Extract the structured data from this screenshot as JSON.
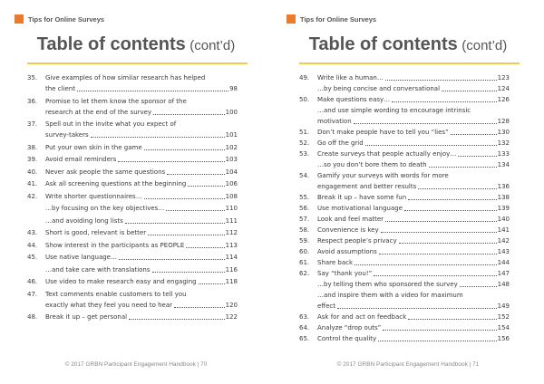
{
  "header": "Tips for Online Surveys",
  "title": {
    "main": "Table of contents",
    "suffix": "(cont’d)"
  },
  "pages": [
    {
      "footer": "© 2017 GRBN Participant Engagement Handbook | 70",
      "entries": [
        {
          "num": "35.",
          "line1": "Give examples of how similar research has helped",
          "text": "the client",
          "page": "98"
        },
        {
          "num": "36.",
          "line1": "Promise to let them know the sponsor of the",
          "text": "research at the end of the survey",
          "page": "100"
        },
        {
          "num": "37.",
          "line1": "Spell out in the invite what you expect of",
          "text": "survey-takers",
          "page": "101"
        },
        {
          "num": "38.",
          "text": "Put your own skin in the game",
          "page": "102"
        },
        {
          "num": "39.",
          "text": "Avoid email reminders",
          "page": "103"
        },
        {
          "num": "40.",
          "text": "Never ask people the same questions",
          "page": "104"
        },
        {
          "num": "41.",
          "text": "Ask all screening questions at the beginning",
          "page": "106"
        },
        {
          "num": "42.",
          "text": "Write shorter questionnaires…",
          "page": "108"
        },
        {
          "num": "",
          "text": "…by focusing on the key objectives…",
          "page": "110"
        },
        {
          "num": "",
          "text": "…and avoiding long lists",
          "page": "111"
        },
        {
          "num": "43.",
          "text": "Short is good, relevant is better",
          "page": "112"
        },
        {
          "num": "44.",
          "text": "Show interest in the participants as PEOPLE",
          "page": "113"
        },
        {
          "num": "45.",
          "text": "Use native language…",
          "page": "114"
        },
        {
          "num": "",
          "text": "…and take care with translations",
          "page": "116"
        },
        {
          "num": "46.",
          "text": "Use video to make research easy and engaging",
          "page": "118"
        },
        {
          "num": "47.",
          "line1": "Text comments enable customers to tell you",
          "text": "exactly what they feel you need to hear",
          "page": "120"
        },
        {
          "num": "48.",
          "text": "Break it up – get personal",
          "page": "122"
        }
      ]
    },
    {
      "footer": "© 2017 GRBN Participant Engagement Handbook | 71",
      "entries": [
        {
          "num": "49.",
          "text": "Write like a human…",
          "page": "123"
        },
        {
          "num": "",
          "text": "…by being concise and conversational",
          "page": "124"
        },
        {
          "num": "50.",
          "text": "Make questions easy…",
          "page": "126"
        },
        {
          "num": "",
          "line1": "…and use simple wording to encourage intrinsic",
          "text": "motivation",
          "page": "128"
        },
        {
          "num": "51.",
          "text": "Don’t make people have to tell you “lies”",
          "page": "130"
        },
        {
          "num": "52.",
          "text": "Go off the grid",
          "page": "132"
        },
        {
          "num": "53.",
          "text": "Create surveys that people actually enjoy…",
          "page": "133"
        },
        {
          "num": "",
          "text": "…so you don’t bore them to death",
          "page": "134"
        },
        {
          "num": "54.",
          "line1": "Gamify your surveys with words for more",
          "text": "engagement and better results",
          "page": "136"
        },
        {
          "num": "55.",
          "text": "Break it up – have some fun",
          "page": "138"
        },
        {
          "num": "56.",
          "text": "Use motivational language",
          "page": "139"
        },
        {
          "num": "57.",
          "text": "Look and feel matter",
          "page": "140"
        },
        {
          "num": "58.",
          "text": "Convenience is key",
          "page": "141"
        },
        {
          "num": "59.",
          "text": "Respect people’s privacy",
          "page": "142"
        },
        {
          "num": "60.",
          "text": "Avoid assumptions",
          "page": "143"
        },
        {
          "num": "61.",
          "text": "Share back",
          "page": "144"
        },
        {
          "num": "62.",
          "text": "Say “thank you!”",
          "page": "147"
        },
        {
          "num": "",
          "text": "…by telling them who sponsored the survey",
          "page": "148"
        },
        {
          "num": "",
          "line1": "…and inspire them with a video for maximum",
          "text": "effect",
          "page": "149"
        },
        {
          "num": "63.",
          "text": "Ask for and act on feedback",
          "page": "152"
        },
        {
          "num": "64.",
          "text": "Analyze “drop outs”",
          "page": "154"
        },
        {
          "num": "65.",
          "text": "Control the quality",
          "page": "156"
        }
      ]
    }
  ]
}
